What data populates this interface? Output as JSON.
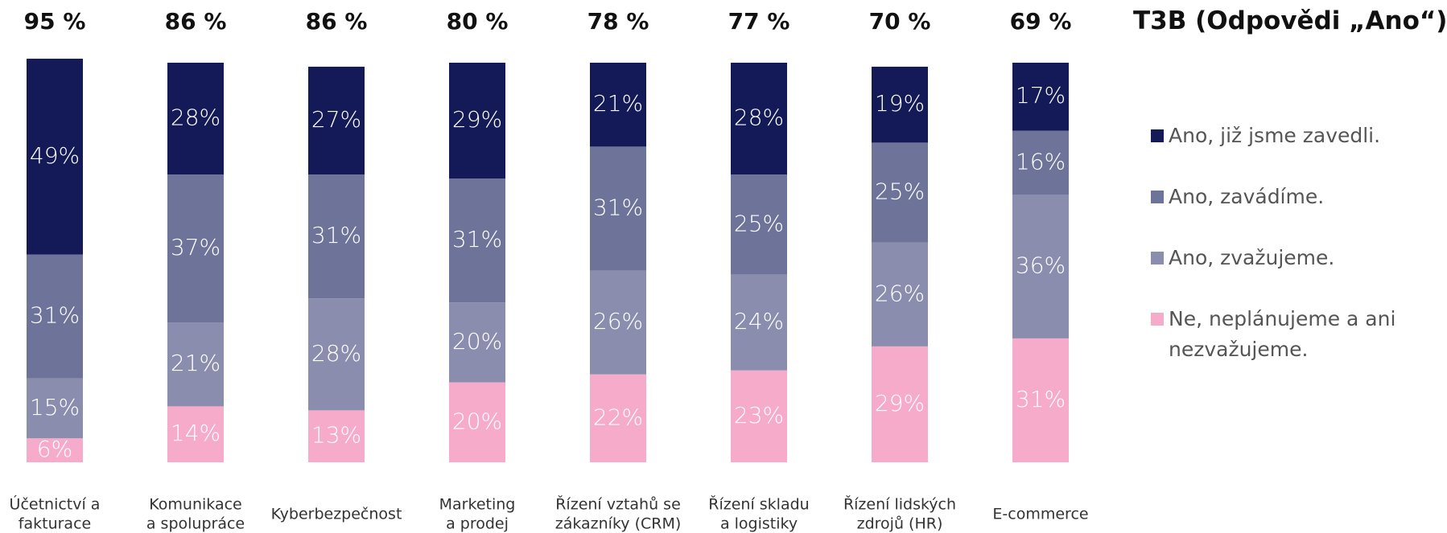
{
  "chart_data": {
    "type": "stacked_bar",
    "title": "T3B (Odpovědi „Ano“)",
    "categories": [
      [
        "Účetnictví a",
        "fakturace"
      ],
      [
        "Komunikace",
        "a spolupráce"
      ],
      [
        "Kyberbezpečnost"
      ],
      [
        "Marketing",
        "a prodej"
      ],
      [
        "Řízení vztahů se",
        "zákazníky (CRM)"
      ],
      [
        "Řízení skladu",
        "a logistiky"
      ],
      [
        "Řízení lidských",
        "zdrojů (HR)"
      ],
      [
        "E-commerce"
      ]
    ],
    "ylim": [
      0,
      100
    ],
    "totals": {
      "values": [
        95,
        86,
        86,
        80,
        78,
        77,
        70,
        69
      ],
      "value_labels": [
        "95 %",
        "86 %",
        "86 %",
        "80 %",
        "78 %",
        "77 %",
        "70 %",
        "69 %"
      ]
    },
    "series": [
      {
        "name": "Ano, již jsme zavedli.",
        "color": "#131a57",
        "values": [
          49,
          28,
          27,
          29,
          21,
          28,
          19,
          17
        ],
        "value_labels": [
          "49%",
          "28%",
          "27%",
          "29%",
          "21%",
          "28%",
          "19%",
          "17%"
        ]
      },
      {
        "name": "Ano, zavádíme.",
        "color": "#6e7399",
        "values": [
          31,
          37,
          31,
          31,
          31,
          25,
          25,
          16
        ],
        "value_labels": [
          "31%",
          "37%",
          "31%",
          "31%",
          "31%",
          "25%",
          "25%",
          "16%"
        ]
      },
      {
        "name": "Ano, zvažujeme.",
        "color": "#8a8dae",
        "values": [
          15,
          21,
          28,
          20,
          26,
          24,
          26,
          36
        ],
        "value_labels": [
          "15%",
          "21%",
          "28%",
          "20%",
          "26%",
          "24%",
          "26%",
          "36%"
        ]
      },
      {
        "name": "Ne, neplánujeme a ani nezvažujeme.",
        "color": "#f5abc9",
        "values": [
          6,
          14,
          13,
          20,
          22,
          23,
          29,
          31
        ],
        "value_labels": [
          "6%",
          "14%",
          "13%",
          "20%",
          "22%",
          "23%",
          "29%",
          "31%"
        ]
      }
    ]
  }
}
